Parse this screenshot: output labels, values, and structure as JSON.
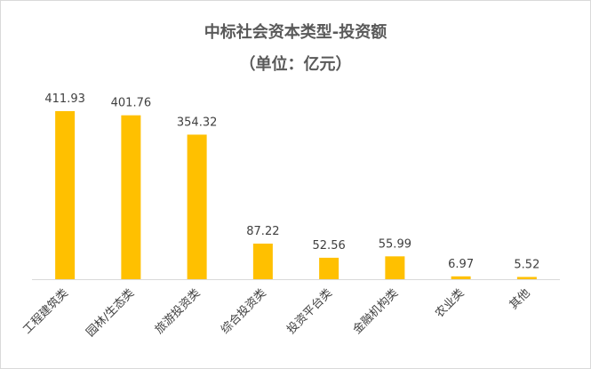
{
  "chart_data": {
    "type": "bar",
    "title": "中标社会资本类型-投资额",
    "subtitle": "（单位：亿元）",
    "categories": [
      "工程建筑类",
      "园林/生态类",
      "旅游投资类",
      "综合投资类",
      "投资平台类",
      "金融机构类",
      "农业类",
      "其他"
    ],
    "values": [
      411.93,
      401.76,
      354.32,
      87.22,
      52.56,
      55.99,
      6.97,
      5.52
    ],
    "value_labels": [
      "411.93",
      "401.76",
      "354.32",
      "87.22",
      "52.56",
      "55.99",
      "6.97",
      "5.52"
    ],
    "bar_color": "#ffc000",
    "ylim": [
      0,
      411.93
    ],
    "grid": false,
    "legend": "none"
  }
}
